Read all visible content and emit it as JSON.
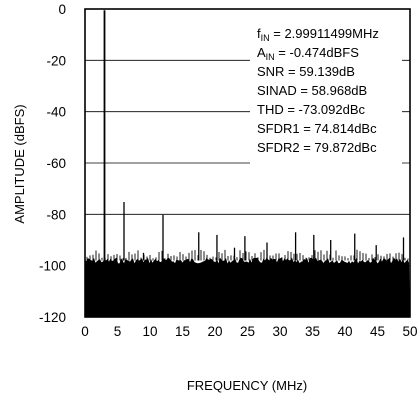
{
  "chart_data": {
    "type": "line",
    "title": "",
    "xlabel": "FREQUENCY (MHz)",
    "ylabel": "AMPLITUDE (dBFS)",
    "xlim": [
      0,
      50
    ],
    "ylim": [
      -120,
      0
    ],
    "x_ticks": [
      0,
      5,
      10,
      15,
      20,
      25,
      30,
      35,
      40,
      45,
      50
    ],
    "y_ticks": [
      0,
      -20,
      -40,
      -60,
      -80,
      -100,
      -120
    ],
    "x_tick_labels": [
      "0",
      "5",
      "10",
      "15",
      "20",
      "25",
      "30",
      "35",
      "40",
      "45",
      "50"
    ],
    "y_tick_labels": [
      "0",
      "-20",
      "-40",
      "-60",
      "-80",
      "-100",
      "-120"
    ],
    "grid": "horizontal",
    "noise_floor": {
      "top_dBFS": -98,
      "bottom_dBFS": -120
    },
    "spectrum": {
      "x": [
        3.0,
        6.0,
        9.0,
        12.0,
        17.5,
        20.3,
        23.0,
        24.6,
        28.0,
        32.4,
        35.2,
        37.8,
        41.5,
        44.8,
        49.0
      ],
      "y": [
        -0.474,
        -75.2,
        -95.0,
        -80.2,
        -87.0,
        -88.0,
        -93.0,
        -88.5,
        -91.0,
        -87.0,
        -88.0,
        -90.0,
        -87.5,
        -92.0,
        -89.0
      ]
    },
    "annotations": {
      "fin_main": "f",
      "fin_sub": "IN",
      "fin_value": " = 2.99911499MHz",
      "ain_main": "A",
      "ain_sub": "IN",
      "ain_value": " = -0.474dBFS",
      "snr": "SNR = 59.139dB",
      "sinad": "SINAD = 58.968dB",
      "thd": "THD = -73.092dBc",
      "sfdr1": "SFDR1 = 74.814dBc",
      "sfdr2": "SFDR2 = 79.872dBc"
    }
  }
}
